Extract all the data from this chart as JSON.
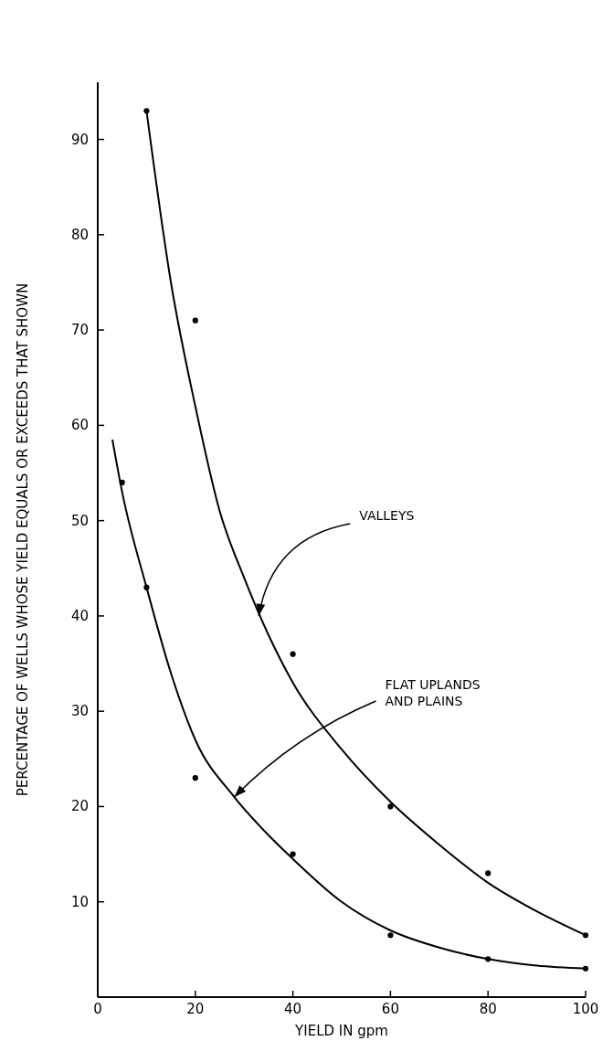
{
  "chart_data": {
    "type": "scatter",
    "xlabel": "YIELD IN gpm",
    "ylabel": "PERCENTAGE OF WELLS WHOSE YIELD EQUALS OR EXCEEDS THAT SHOWN",
    "xlim": [
      0,
      100
    ],
    "ylim": [
      0,
      96
    ],
    "xticks": [
      0,
      20,
      40,
      60,
      80,
      100
    ],
    "yticks": [
      10,
      20,
      30,
      40,
      50,
      60,
      70,
      80,
      90
    ],
    "series": [
      {
        "marker": "circle",
        "color": "#000000",
        "x": [
          10,
          20,
          40,
          60,
          80,
          100
        ],
        "values": [
          93,
          71,
          36,
          20,
          13,
          6.5
        ]
      },
      {
        "marker": "circle",
        "color": "#000000",
        "x": [
          5,
          10,
          20,
          40,
          60,
          80,
          100
        ],
        "values": [
          54,
          43,
          23,
          15,
          6.5,
          4,
          3
        ]
      },
      {
        "type": "line",
        "marker": "none",
        "color": "#000000",
        "x": [
          10,
          15,
          20,
          25,
          30,
          35,
          40,
          50,
          60,
          70,
          80,
          90,
          100
        ],
        "values": [
          93,
          75,
          62,
          51,
          44,
          38,
          33,
          26,
          20.5,
          16,
          12,
          9,
          6.5
        ]
      },
      {
        "type": "line",
        "marker": "none",
        "color": "#000000",
        "x": [
          3,
          5,
          10,
          15,
          20,
          28,
          35,
          40,
          50,
          60,
          70,
          80,
          90,
          100
        ],
        "values": [
          58.5,
          53,
          43,
          34,
          27,
          21,
          17,
          14.5,
          10,
          7,
          5.2,
          4,
          3.3,
          3
        ]
      }
    ],
    "annotations": [
      {
        "text": "VALLEYS",
        "x": 33,
        "y": 40
      },
      {
        "text": "FLAT UPLANDS\nAND PLAINS",
        "x": 28,
        "y": 21
      }
    ]
  }
}
